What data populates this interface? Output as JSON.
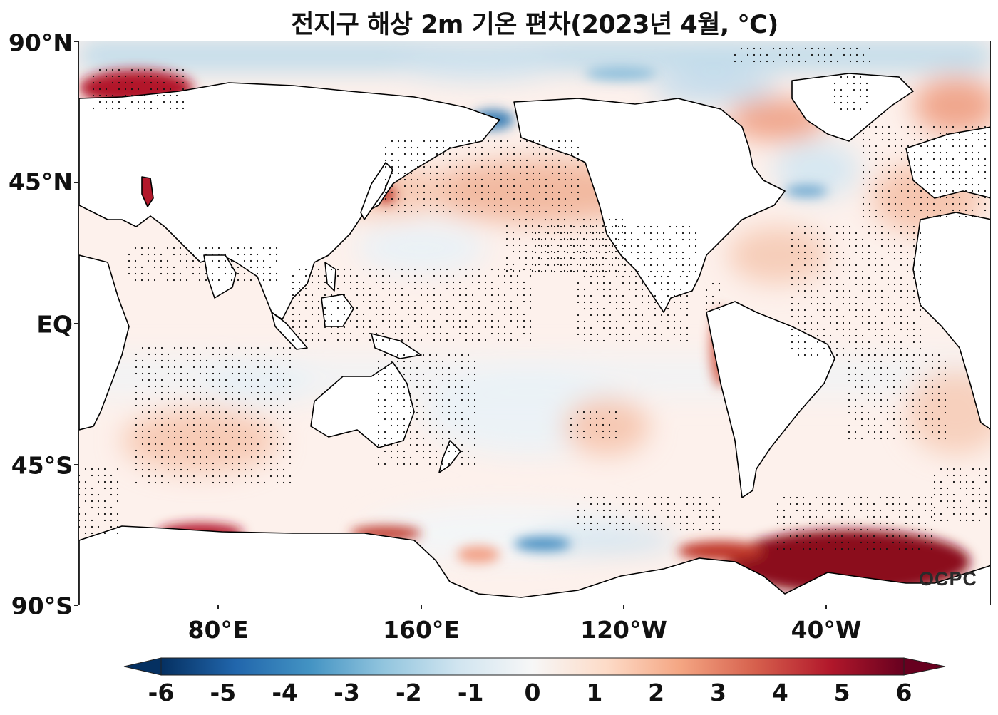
{
  "title": "전지구 해상 2m 기온 편차(2023년 4월, ℃)",
  "map": {
    "projection": "plate-carree",
    "central_longitude": 180,
    "extent": {
      "lon_min": 30,
      "lon_max": 390,
      "lat_min": -90,
      "lat_max": 90
    },
    "field": "2m air temperature anomaly over ocean",
    "stippling": "statistically significant anomalies shown by black dots",
    "land_color": "#ffffff",
    "coastline_color": "#000000"
  },
  "lat_labels": [
    {
      "text": "90°N",
      "lat": 90
    },
    {
      "text": "45°N",
      "lat": 45
    },
    {
      "text": "EQ",
      "lat": 0
    },
    {
      "text": "45°S",
      "lat": -45
    },
    {
      "text": "90°S",
      "lat": -90
    }
  ],
  "lon_labels": [
    {
      "text": "80°E",
      "lon": 80
    },
    {
      "text": "160°E",
      "lon": 160
    },
    {
      "text": "120°W",
      "lon": 240
    },
    {
      "text": "40°W",
      "lon": 320
    }
  ],
  "colorbar": {
    "cmap": "RdBu_r",
    "min": -6,
    "max": 6,
    "extend": "both",
    "ticks": [
      "-6",
      "-5",
      "-4",
      "-3",
      "-2",
      "-1",
      "0",
      "1",
      "2",
      "3",
      "4",
      "5",
      "6"
    ]
  },
  "watermark": "OCPC"
}
